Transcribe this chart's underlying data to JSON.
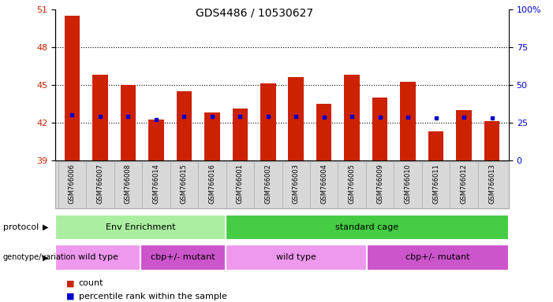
{
  "title": "GDS4486 / 10530627",
  "samples": [
    "GSM766006",
    "GSM766007",
    "GSM766008",
    "GSM766014",
    "GSM766015",
    "GSM766016",
    "GSM766001",
    "GSM766002",
    "GSM766003",
    "GSM766004",
    "GSM766005",
    "GSM766009",
    "GSM766010",
    "GSM766011",
    "GSM766012",
    "GSM766013"
  ],
  "bar_tops": [
    50.5,
    45.8,
    45.0,
    42.2,
    44.5,
    42.8,
    43.1,
    45.1,
    45.6,
    43.5,
    45.8,
    44.0,
    45.2,
    41.3,
    43.0,
    42.1
  ],
  "bar_bottoms": [
    39.0,
    39.0,
    39.0,
    39.0,
    39.0,
    39.0,
    39.0,
    39.0,
    39.0,
    39.0,
    39.0,
    39.0,
    39.0,
    39.0,
    39.0,
    39.0
  ],
  "blue_dot_values": [
    42.6,
    42.5,
    42.5,
    42.25,
    42.5,
    42.5,
    42.5,
    42.5,
    42.5,
    42.4,
    42.5,
    42.4,
    42.4,
    42.35,
    42.4,
    42.35
  ],
  "bar_color": "#cc2200",
  "dot_color": "#0000cc",
  "ylim_left": [
    39,
    51
  ],
  "ylim_right": [
    0,
    100
  ],
  "yticks_left": [
    39,
    42,
    45,
    48,
    51
  ],
  "yticks_right": [
    0,
    25,
    50,
    75,
    100
  ],
  "protocol_groups": [
    {
      "label": "Env Enrichment",
      "start": 0,
      "end": 6,
      "color": "#aaeea0"
    },
    {
      "label": "standard cage",
      "start": 6,
      "end": 16,
      "color": "#44cc44"
    }
  ],
  "genotype_groups": [
    {
      "label": "wild type",
      "start": 0,
      "end": 3,
      "color": "#ee99ee"
    },
    {
      "label": "cbp+/- mutant",
      "start": 3,
      "end": 6,
      "color": "#cc55cc"
    },
    {
      "label": "wild type",
      "start": 6,
      "end": 11,
      "color": "#ee99ee"
    },
    {
      "label": "cbp+/- mutant",
      "start": 11,
      "end": 16,
      "color": "#cc55cc"
    }
  ],
  "background_color": "#ffffff",
  "tick_label_color_left": "#cc2200",
  "tick_label_color_right": "#0000cc",
  "xticklabel_bg": "#d8d8d8"
}
